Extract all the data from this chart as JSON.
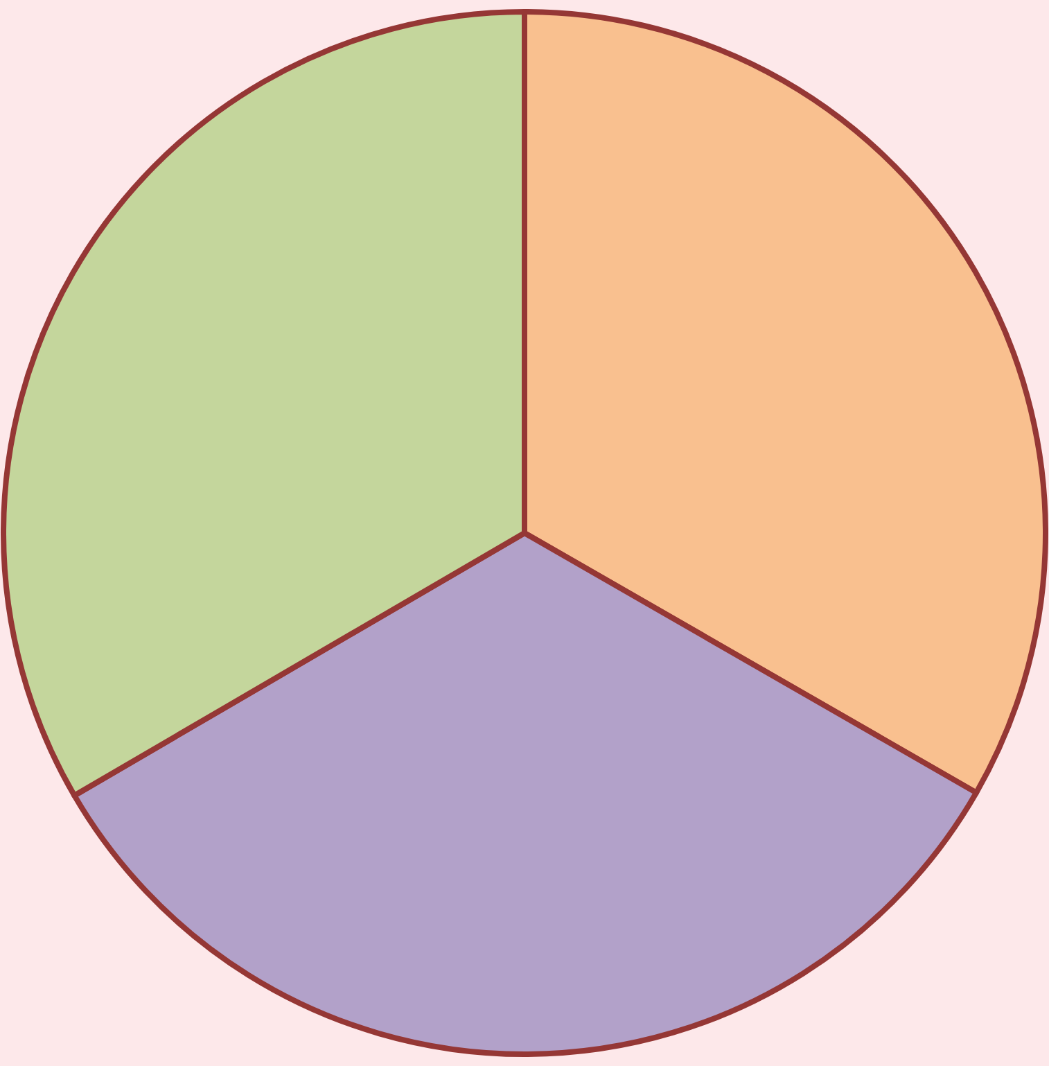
{
  "chart_data": {
    "type": "pie",
    "categories": [
      null,
      null,
      null
    ],
    "values": [
      33.3,
      33.3,
      33.4
    ],
    "colors": [
      "#f9c08f",
      "#b2a1c9",
      "#c4d69c"
    ]
  }
}
